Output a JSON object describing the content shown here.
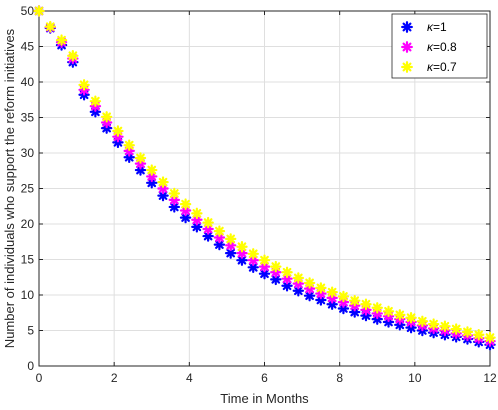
{
  "chart_data": {
    "type": "scatter",
    "xlabel": "Time in Months",
    "ylabel": "Number of individuals who support the reform initiatives",
    "xlim": [
      0,
      12
    ],
    "ylim": [
      0,
      50
    ],
    "xticks": [
      0,
      2,
      4,
      6,
      8,
      10,
      12
    ],
    "yticks": [
      0,
      5,
      10,
      15,
      20,
      25,
      30,
      35,
      40,
      45,
      50
    ],
    "grid": true,
    "legend_position": "top-right",
    "marker": "asterisk",
    "x": [
      0.0,
      0.3,
      0.6,
      0.9,
      1.2,
      1.5,
      1.8,
      2.1,
      2.4,
      2.7,
      3.0,
      3.3,
      3.6,
      3.9,
      4.2,
      4.5,
      4.8,
      5.1,
      5.4,
      5.7,
      6.0,
      6.3,
      6.6,
      6.9,
      7.2,
      7.5,
      7.8,
      8.1,
      8.4,
      8.7,
      9.0,
      9.3,
      9.6,
      9.9,
      10.2,
      10.5,
      10.8,
      11.1,
      11.4,
      11.7,
      12.0
    ],
    "series": [
      {
        "name": "κ=1",
        "name_symbol": "κ",
        "name_suffix": "=1",
        "color": "#0000ff",
        "values": [
          50.0,
          47.6,
          45.2,
          42.8,
          38.2,
          35.8,
          33.5,
          31.5,
          29.4,
          27.6,
          25.8,
          24.0,
          22.4,
          20.9,
          19.6,
          18.3,
          17.1,
          15.9,
          14.9,
          13.9,
          13.0,
          12.2,
          11.3,
          10.6,
          9.9,
          9.3,
          8.7,
          8.1,
          7.6,
          7.1,
          6.6,
          6.2,
          5.8,
          5.4,
          5.0,
          4.7,
          4.4,
          4.1,
          3.8,
          3.4,
          3.0
        ]
      },
      {
        "name": "κ=0.8",
        "name_symbol": "κ",
        "name_suffix": "=0.8",
        "color": "#ff00ff",
        "values": [
          50.0,
          47.7,
          45.6,
          43.3,
          38.9,
          36.6,
          34.3,
          32.3,
          30.3,
          28.5,
          26.7,
          25.0,
          23.4,
          21.9,
          20.6,
          19.3,
          18.1,
          17.0,
          15.9,
          14.9,
          14.0,
          13.2,
          12.3,
          11.6,
          10.9,
          10.2,
          9.6,
          9.0,
          8.5,
          7.9,
          7.4,
          7.0,
          6.6,
          6.2,
          5.7,
          5.3,
          5.0,
          4.6,
          4.3,
          3.9,
          3.5
        ]
      },
      {
        "name": "κ=0.7",
        "name_symbol": "κ",
        "name_suffix": "=0.7",
        "color": "#ffff00",
        "values": [
          50.0,
          47.8,
          45.9,
          43.7,
          39.6,
          37.3,
          35.1,
          33.1,
          31.1,
          29.3,
          27.6,
          25.9,
          24.3,
          22.8,
          21.5,
          20.2,
          19.0,
          17.9,
          16.8,
          15.8,
          14.9,
          14.0,
          13.2,
          12.4,
          11.7,
          11.0,
          10.4,
          9.8,
          9.2,
          8.7,
          8.2,
          7.7,
          7.2,
          6.8,
          6.3,
          5.9,
          5.6,
          5.2,
          4.8,
          4.4,
          4.0
        ]
      }
    ]
  }
}
